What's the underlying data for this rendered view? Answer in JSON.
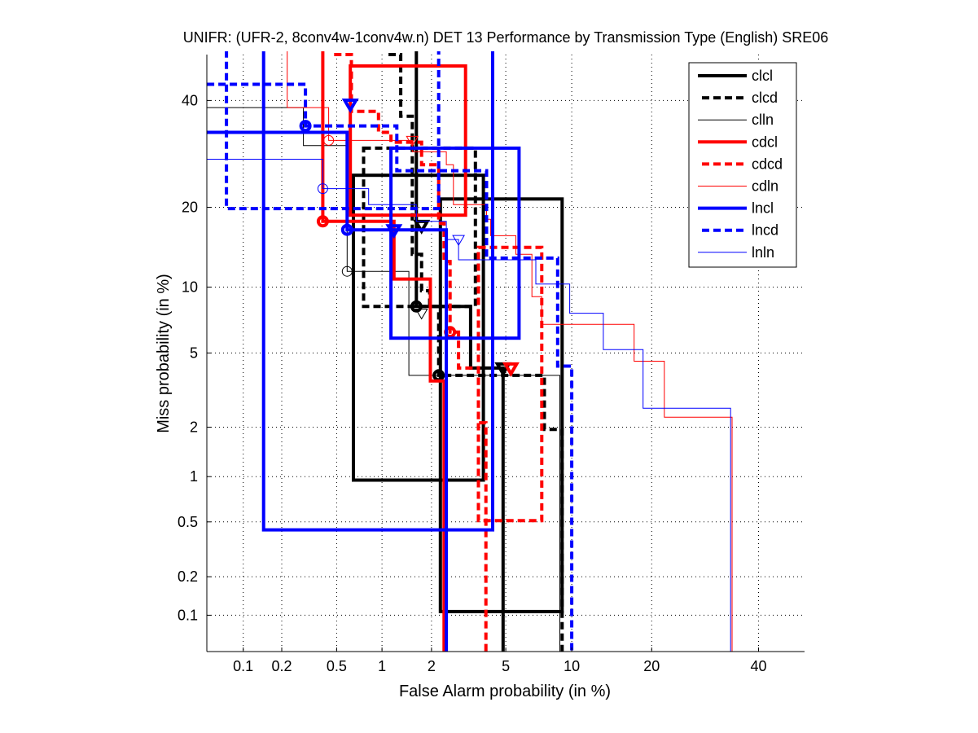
{
  "chart_data": {
    "type": "line",
    "subtype": "DET",
    "title": "UNIFR: (UFR-2, 8conv4w-1conv4w.n) DET 13 Performance by Transmission Type (English) SRE06",
    "xlabel": "False Alarm probability (in %)",
    "ylabel": "Miss probability (in %)",
    "xscale": "normal-deviate",
    "yscale": "normal-deviate",
    "xlim": [
      0.05,
      50
    ],
    "ylim": [
      0.05,
      50
    ],
    "x_ticks": [
      0.1,
      0.2,
      0.5,
      1,
      2,
      5,
      10,
      20,
      40
    ],
    "x_tick_labels": [
      "0.1",
      "0.2",
      "0.5",
      "1",
      "2",
      "5",
      "10",
      "20",
      "40"
    ],
    "y_ticks": [
      0.1,
      0.2,
      0.5,
      1,
      2,
      5,
      10,
      20,
      40
    ],
    "y_tick_labels": [
      "0.1",
      "0.2",
      "0.5",
      "1",
      "2",
      "5",
      "10",
      "20",
      "40"
    ],
    "grid": true,
    "legend_placement": "top-right",
    "series": [
      {
        "name": "clcl",
        "color": "#000000",
        "line_style": "solid",
        "weight": "thick",
        "curve": [
          [
            1.63,
            60
          ],
          [
            1.63,
            8.25
          ],
          [
            3.3,
            8.25
          ],
          [
            3.3,
            4.2
          ],
          [
            4.85,
            4.2
          ],
          [
            4.85,
            0.04
          ]
        ],
        "boxes": [
          {
            "x": [
              0.65,
              3.85
            ],
            "y": [
              0.95,
              25.3
            ]
          },
          {
            "x": [
              2.25,
              9.1
            ],
            "y": [
              0.107,
              21.3
            ]
          }
        ],
        "markers": [
          {
            "type": "circle",
            "x": 1.63,
            "y": 8.25
          },
          {
            "type": "triangle",
            "x": 4.85,
            "y": 4.2
          }
        ]
      },
      {
        "name": "clcd",
        "color": "#000000",
        "line_style": "dashed",
        "weight": "thick",
        "curve": [
          [
            1.1,
            50
          ],
          [
            1.31,
            50
          ],
          [
            1.31,
            36.7
          ],
          [
            1.54,
            36.7
          ],
          [
            1.54,
            13.55
          ],
          [
            1.75,
            13.55
          ],
          [
            1.75,
            9.65
          ],
          [
            1.95,
            9.65
          ],
          [
            1.95,
            8.25
          ],
          [
            2.2,
            8.25
          ],
          [
            2.2,
            3.85
          ],
          [
            7.6,
            3.85
          ],
          [
            7.6,
            1.94
          ],
          [
            9.1,
            1.94
          ],
          [
            9.1,
            0.04
          ]
        ],
        "boxes": [
          {
            "x": [
              0.76,
              3.5
            ],
            "y": [
              8.25,
              30.3
            ]
          }
        ],
        "markers": [
          {
            "type": "circle",
            "x": 2.2,
            "y": 3.85
          },
          {
            "type": "triangle",
            "x": 1.75,
            "y": 17.3
          }
        ]
      },
      {
        "name": "clln",
        "color": "#000000",
        "line_style": "solid",
        "weight": "thin",
        "curve": [
          [
            0.04,
            38.5
          ],
          [
            0.29,
            38.5
          ],
          [
            0.29,
            30.8
          ],
          [
            0.59,
            30.8
          ],
          [
            0.59,
            11.6
          ],
          [
            1.47,
            11.6
          ],
          [
            1.47,
            3.85
          ],
          [
            8.9,
            3.85
          ],
          [
            8.9,
            0.04
          ]
        ],
        "boxes": [],
        "markers": [
          {
            "type": "circle",
            "x": 0.59,
            "y": 11.6
          },
          {
            "type": "triangle",
            "x": 1.75,
            "y": 7.7
          }
        ]
      },
      {
        "name": "cdcl",
        "color": "#ff0000",
        "line_style": "solid",
        "weight": "thick",
        "curve": [
          [
            0.4,
            60
          ],
          [
            0.4,
            17.9
          ],
          [
            1.19,
            17.9
          ],
          [
            1.19,
            10.8
          ],
          [
            1.97,
            10.8
          ],
          [
            1.97,
            3.6
          ],
          [
            2.36,
            3.6
          ],
          [
            2.36,
            0.04
          ]
        ],
        "boxes": [
          {
            "x": [
              0.62,
              3.1
            ],
            "y": [
              18.8,
              47.5
            ]
          }
        ],
        "markers": [
          {
            "type": "circle",
            "x": 0.4,
            "y": 17.9
          }
        ]
      },
      {
        "name": "cdcd",
        "color": "#ff0000",
        "line_style": "dashed",
        "weight": "thick",
        "curve": [
          [
            0.48,
            50
          ],
          [
            0.63,
            50
          ],
          [
            0.63,
            37.7
          ],
          [
            0.95,
            37.7
          ],
          [
            0.95,
            33.4
          ],
          [
            1.14,
            33.4
          ],
          [
            1.14,
            31.45
          ],
          [
            1.75,
            31.45
          ],
          [
            1.75,
            27.2
          ],
          [
            2.2,
            27.2
          ],
          [
            2.2,
            17.6
          ],
          [
            2.36,
            17.6
          ],
          [
            2.36,
            12.7
          ],
          [
            2.55,
            12.7
          ],
          [
            2.55,
            6.3
          ],
          [
            2.84,
            6.3
          ],
          [
            2.84,
            4.2
          ],
          [
            3.63,
            4.2
          ],
          [
            3.63,
            2.12
          ],
          [
            3.97,
            2.12
          ],
          [
            3.97,
            0.04
          ]
        ],
        "boxes": [
          {
            "x": [
              3.63,
              7.4
            ],
            "y": [
              0.51,
              14.4
            ]
          }
        ],
        "markers": [
          {
            "type": "circle",
            "x": 2.55,
            "y": 6.3
          },
          {
            "type": "triangle",
            "x": 5.3,
            "y": 4.2
          }
        ]
      },
      {
        "name": "cdln",
        "color": "#ff0000",
        "line_style": "solid",
        "weight": "thin",
        "curve": [
          [
            0.22,
            60
          ],
          [
            0.22,
            38.5
          ],
          [
            0.44,
            38.5
          ],
          [
            0.44,
            31.8
          ],
          [
            1.54,
            31.8
          ],
          [
            1.54,
            29.6
          ],
          [
            2.43,
            29.6
          ],
          [
            2.43,
            27.2
          ],
          [
            2.66,
            27.2
          ],
          [
            2.66,
            20.4
          ],
          [
            4.0,
            20.4
          ],
          [
            4.0,
            18.2
          ],
          [
            4.2,
            18.2
          ],
          [
            4.2,
            15.9
          ],
          [
            5.6,
            15.9
          ],
          [
            5.6,
            13.55
          ],
          [
            6.67,
            13.55
          ],
          [
            6.67,
            9.1
          ],
          [
            7.4,
            9.1
          ],
          [
            7.4,
            6.85
          ],
          [
            17.4,
            6.85
          ],
          [
            17.4,
            4.55
          ],
          [
            22,
            4.55
          ],
          [
            22,
            2.28
          ],
          [
            34.5,
            2.28
          ],
          [
            34.5,
            0.04
          ]
        ],
        "boxes": [],
        "markers": [
          {
            "type": "circle",
            "x": 0.44,
            "y": 31.8
          },
          {
            "type": "triangle",
            "x": 1.54,
            "y": 31.8
          }
        ]
      },
      {
        "name": "lncl",
        "color": "#0000ff",
        "line_style": "solid",
        "weight": "thick",
        "curve": [
          [
            0.04,
            33.4
          ],
          [
            0.59,
            33.4
          ],
          [
            0.59,
            16.7
          ],
          [
            2.43,
            16.7
          ],
          [
            2.43,
            0.04
          ]
        ],
        "boxes": [
          {
            "x": [
              0.145,
              4.3
            ],
            "y": [
              0.44,
              60
            ]
          },
          {
            "x": [
              1.14,
              5.8
            ],
            "y": [
              5.9,
              30.3
            ]
          }
        ],
        "markers": [
          {
            "type": "circle",
            "x": 0.59,
            "y": 16.7
          },
          {
            "type": "triangle",
            "x": 1.19,
            "y": 16.7
          }
        ]
      },
      {
        "name": "lncd",
        "color": "#0000ff",
        "line_style": "dashed",
        "weight": "thick",
        "curve": [
          [
            0.04,
            43.5
          ],
          [
            0.3,
            43.5
          ],
          [
            0.3,
            34.7
          ],
          [
            1.24,
            34.7
          ],
          [
            1.24,
            26.1
          ],
          [
            4.0,
            26.1
          ],
          [
            4.0,
            13.1
          ],
          [
            8.7,
            13.1
          ],
          [
            8.7,
            4.3
          ],
          [
            10,
            4.3
          ],
          [
            10,
            0.04
          ]
        ],
        "boxes": [
          {
            "x": [
              0.073,
              2.2
            ],
            "y": [
              19.8,
              60
            ]
          }
        ],
        "markers": [
          {
            "type": "circle",
            "x": 0.3,
            "y": 34.7
          },
          {
            "type": "triangle",
            "x": 0.62,
            "y": 39.2
          }
        ]
      },
      {
        "name": "lnln",
        "color": "#0000ff",
        "line_style": "solid",
        "weight": "thin",
        "curve": [
          [
            0.04,
            28.2
          ],
          [
            0.4,
            28.2
          ],
          [
            0.4,
            23.0
          ],
          [
            0.82,
            23.0
          ],
          [
            0.82,
            20.4
          ],
          [
            1.63,
            20.4
          ],
          [
            1.63,
            17.9
          ],
          [
            2.43,
            17.9
          ],
          [
            2.43,
            15.4
          ],
          [
            2.84,
            15.4
          ],
          [
            2.84,
            12.9
          ],
          [
            6.95,
            12.9
          ],
          [
            6.95,
            10.3
          ],
          [
            9.8,
            10.3
          ],
          [
            9.8,
            7.7
          ],
          [
            13.4,
            7.7
          ],
          [
            13.4,
            5.2
          ],
          [
            18.7,
            5.2
          ],
          [
            18.7,
            2.56
          ],
          [
            34.2,
            2.56
          ],
          [
            34.2,
            0.04
          ]
        ],
        "boxes": [],
        "markers": [
          {
            "type": "circle",
            "x": 0.4,
            "y": 23.0
          },
          {
            "type": "triangle",
            "x": 2.84,
            "y": 15.4
          }
        ]
      }
    ]
  }
}
